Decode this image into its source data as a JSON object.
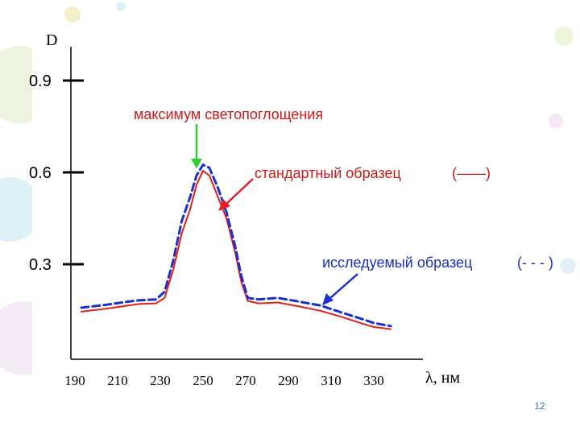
{
  "slide": {
    "page_number": "12"
  },
  "colors": {
    "standard_line": "#e02020",
    "test_line": "#1a2fcf",
    "max_arrow": "#2fcf2f",
    "std_annotation": "#cc1a1a",
    "test_annotation": "#1a2fbf"
  },
  "annotations": {
    "max_label": "максимум светопоглощения",
    "standard_label": "стандартный образец",
    "standard_legend": "(——)",
    "test_label": "исследуемый образец",
    "test_legend": "(- - - )"
  },
  "chart_data": {
    "type": "line",
    "xlabel": "λ, нм",
    "ylabel": "D",
    "xlim": [
      190,
      340
    ],
    "ylim": [
      0,
      1.0
    ],
    "x_ticks": [
      190,
      210,
      230,
      250,
      270,
      290,
      310,
      330
    ],
    "y_ticks": [
      {
        "value": 0.9,
        "label": "0.9"
      },
      {
        "value": 0.6,
        "label": "0.6"
      },
      {
        "value": 0.3,
        "label": "0.3"
      }
    ],
    "grid": false,
    "series": [
      {
        "name": "стандартный образец",
        "style": "solid",
        "points": [
          [
            193,
            0.145
          ],
          [
            205,
            0.155
          ],
          [
            215,
            0.165
          ],
          [
            220,
            0.17
          ],
          [
            228,
            0.172
          ],
          [
            232,
            0.19
          ],
          [
            236,
            0.28
          ],
          [
            240,
            0.4
          ],
          [
            244,
            0.48
          ],
          [
            247,
            0.56
          ],
          [
            250,
            0.605
          ],
          [
            253,
            0.59
          ],
          [
            257,
            0.52
          ],
          [
            261,
            0.45
          ],
          [
            265,
            0.34
          ],
          [
            268,
            0.24
          ],
          [
            271,
            0.18
          ],
          [
            276,
            0.172
          ],
          [
            285,
            0.175
          ],
          [
            295,
            0.162
          ],
          [
            305,
            0.148
          ],
          [
            315,
            0.128
          ],
          [
            325,
            0.105
          ],
          [
            330,
            0.095
          ],
          [
            338,
            0.088
          ]
        ]
      },
      {
        "name": "исследуемый образец",
        "style": "dashed",
        "points": [
          [
            193,
            0.158
          ],
          [
            205,
            0.168
          ],
          [
            215,
            0.178
          ],
          [
            220,
            0.182
          ],
          [
            228,
            0.185
          ],
          [
            232,
            0.21
          ],
          [
            236,
            0.31
          ],
          [
            240,
            0.44
          ],
          [
            244,
            0.52
          ],
          [
            247,
            0.59
          ],
          [
            250,
            0.625
          ],
          [
            253,
            0.615
          ],
          [
            257,
            0.55
          ],
          [
            261,
            0.47
          ],
          [
            265,
            0.36
          ],
          [
            268,
            0.26
          ],
          [
            271,
            0.19
          ],
          [
            276,
            0.185
          ],
          [
            285,
            0.19
          ],
          [
            295,
            0.178
          ],
          [
            305,
            0.165
          ],
          [
            315,
            0.142
          ],
          [
            325,
            0.12
          ],
          [
            330,
            0.108
          ],
          [
            338,
            0.098
          ]
        ]
      }
    ]
  }
}
